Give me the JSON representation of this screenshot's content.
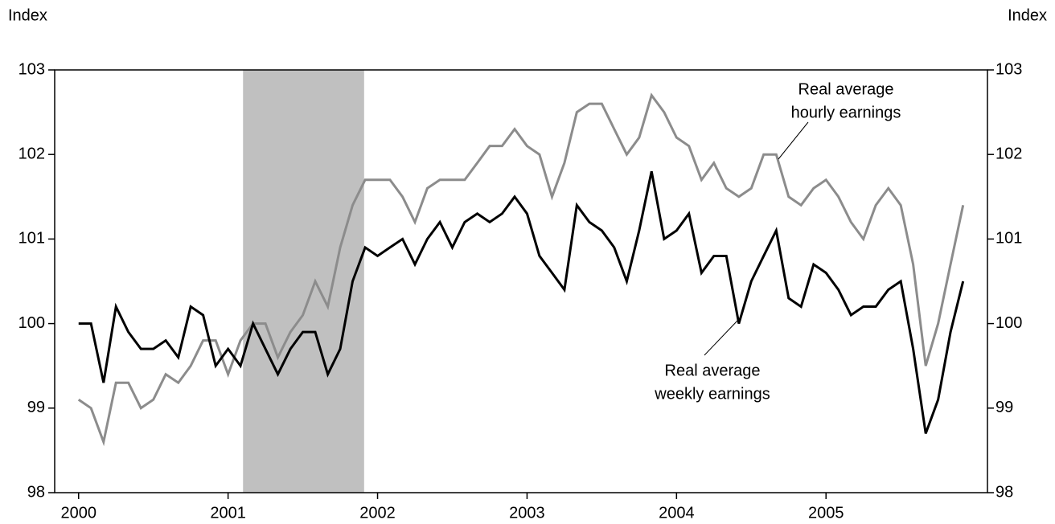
{
  "chart_data": {
    "type": "line",
    "y_label": "Index",
    "y2_label": "Index",
    "x": [
      2000,
      2000.083,
      2000.167,
      2000.25,
      2000.333,
      2000.417,
      2000.5,
      2000.583,
      2000.667,
      2000.75,
      2000.833,
      2000.917,
      2001,
      2001.083,
      2001.167,
      2001.25,
      2001.333,
      2001.417,
      2001.5,
      2001.583,
      2001.667,
      2001.75,
      2001.833,
      2001.917,
      2002,
      2002.083,
      2002.167,
      2002.25,
      2002.333,
      2002.417,
      2002.5,
      2002.583,
      2002.667,
      2002.75,
      2002.833,
      2002.917,
      2003,
      2003.083,
      2003.167,
      2003.25,
      2003.333,
      2003.417,
      2003.5,
      2003.583,
      2003.667,
      2003.75,
      2003.833,
      2003.917,
      2004,
      2004.083,
      2004.167,
      2004.25,
      2004.333,
      2004.417,
      2004.5,
      2004.583,
      2004.667,
      2004.75,
      2004.833,
      2004.917,
      2005,
      2005.083,
      2005.167,
      2005.25,
      2005.333,
      2005.417,
      2005.5,
      2005.583,
      2005.667,
      2005.75,
      2005.833,
      2005.917
    ],
    "series": [
      {
        "name": "Real average weekly earnings",
        "color": "#000000",
        "values": [
          100.0,
          100.0,
          99.3,
          100.2,
          99.9,
          99.7,
          99.7,
          99.8,
          99.6,
          100.2,
          100.1,
          99.5,
          99.7,
          99.5,
          100.0,
          99.7,
          99.4,
          99.7,
          99.9,
          99.9,
          99.4,
          99.7,
          100.5,
          100.9,
          100.8,
          100.9,
          101.0,
          100.7,
          101.0,
          101.2,
          100.9,
          101.2,
          101.3,
          101.2,
          101.3,
          101.5,
          101.3,
          100.8,
          100.6,
          100.4,
          101.4,
          101.2,
          101.1,
          100.9,
          100.5,
          101.1,
          101.8,
          101.0,
          101.1,
          101.3,
          100.6,
          100.8,
          100.8,
          100.0,
          100.5,
          100.8,
          101.1,
          100.3,
          100.2,
          100.7,
          100.6,
          100.4,
          100.1,
          100.2,
          100.2,
          100.4,
          100.5,
          99.7,
          98.7,
          99.1,
          99.9,
          100.5
        ]
      },
      {
        "name": "Real average hourly earnings",
        "color": "#8c8c8c",
        "values": [
          99.1,
          99.0,
          98.6,
          99.3,
          99.3,
          99.0,
          99.1,
          99.4,
          99.3,
          99.5,
          99.8,
          99.8,
          99.4,
          99.8,
          100.0,
          100.0,
          99.6,
          99.9,
          100.1,
          100.5,
          100.2,
          100.9,
          101.4,
          101.7,
          101.7,
          101.7,
          101.5,
          101.2,
          101.6,
          101.7,
          101.7,
          101.7,
          101.9,
          102.1,
          102.1,
          102.3,
          102.1,
          102.0,
          101.5,
          101.9,
          102.5,
          102.6,
          102.6,
          102.3,
          102.0,
          102.2,
          102.7,
          102.5,
          102.2,
          102.1,
          101.7,
          101.9,
          101.6,
          101.5,
          101.6,
          102.0,
          102.0,
          101.5,
          101.4,
          101.6,
          101.7,
          101.5,
          101.2,
          101.0,
          101.4,
          101.6,
          101.4,
          100.7,
          99.5,
          100.0,
          100.7,
          101.4
        ]
      }
    ],
    "annotations": [
      {
        "lines": [
          "Real average",
          "hourly earnings"
        ],
        "series": 1
      },
      {
        "lines": [
          "Real average",
          "weekly earnings"
        ],
        "series": 0
      }
    ],
    "shaded_span": [
      2001.1,
      2001.91
    ],
    "shade_color": "#c0c0c0",
    "xlim": [
      1999.84,
      2006.08
    ],
    "xticks": [
      2000,
      2001,
      2002,
      2003,
      2004,
      2005
    ],
    "ylim": [
      98,
      103
    ],
    "yticks": [
      98,
      99,
      100,
      101,
      102,
      103
    ],
    "y2lim": [
      98,
      103
    ],
    "y2ticks": [
      98,
      99,
      100,
      101,
      102,
      103
    ],
    "grid": false
  }
}
